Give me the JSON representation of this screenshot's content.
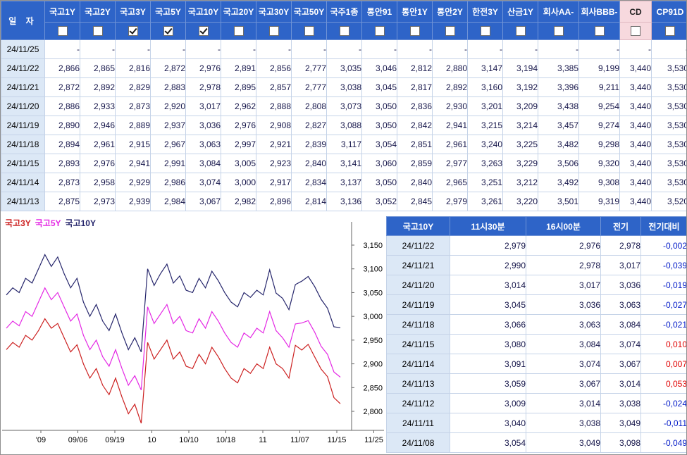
{
  "colors": {
    "header_bg": "#2e64c8",
    "header_text": "#ffffff",
    "date_cell_bg": "#dce8f6",
    "grid": "#c5d3e8",
    "value_text": "#15154a",
    "cd_highlight_bg": "#f7d9de",
    "negative": "#0018c8",
    "positive": "#e00000",
    "series_3y": "#cc2020",
    "series_5y": "#e428e4",
    "series_10y": "#26266c"
  },
  "top_table": {
    "date_header": "일 자",
    "columns": [
      {
        "label": "국고1Y",
        "checked": false,
        "highlight": false
      },
      {
        "label": "국고2Y",
        "checked": false,
        "highlight": false
      },
      {
        "label": "국고3Y",
        "checked": true,
        "highlight": false
      },
      {
        "label": "국고5Y",
        "checked": true,
        "highlight": false
      },
      {
        "label": "국고10Y",
        "checked": true,
        "highlight": false
      },
      {
        "label": "국고20Y",
        "checked": false,
        "highlight": false
      },
      {
        "label": "국고30Y",
        "checked": false,
        "highlight": false
      },
      {
        "label": "국고50Y",
        "checked": false,
        "highlight": false
      },
      {
        "label": "국주1종",
        "checked": false,
        "highlight": false
      },
      {
        "label": "통안91",
        "checked": false,
        "highlight": false
      },
      {
        "label": "통안1Y",
        "checked": false,
        "highlight": false
      },
      {
        "label": "통안2Y",
        "checked": false,
        "highlight": false
      },
      {
        "label": "한전3Y",
        "checked": false,
        "highlight": false
      },
      {
        "label": "산금1Y",
        "checked": false,
        "highlight": false
      },
      {
        "label": "회사AA-",
        "checked": false,
        "highlight": false
      },
      {
        "label": "회사BBB-",
        "checked": false,
        "highlight": false
      },
      {
        "label": "CD",
        "checked": false,
        "highlight": true
      },
      {
        "label": "CP91D",
        "checked": false,
        "highlight": false
      }
    ],
    "rows": [
      {
        "date": "24/11/25",
        "values": [
          "-",
          "-",
          "-",
          "-",
          "-",
          "-",
          "-",
          "-",
          "-",
          "-",
          "-",
          "-",
          "-",
          "-",
          "-",
          "-",
          "-",
          "-"
        ]
      },
      {
        "date": "24/11/22",
        "values": [
          "2,866",
          "2,865",
          "2,816",
          "2,872",
          "2,976",
          "2,891",
          "2,856",
          "2,777",
          "3,035",
          "3,046",
          "2,812",
          "2,880",
          "3,147",
          "3,194",
          "3,385",
          "9,199",
          "3,440",
          "3,530"
        ]
      },
      {
        "date": "24/11/21",
        "values": [
          "2,872",
          "2,892",
          "2,829",
          "2,883",
          "2,978",
          "2,895",
          "2,857",
          "2,777",
          "3,038",
          "3,045",
          "2,817",
          "2,892",
          "3,160",
          "3,192",
          "3,396",
          "9,211",
          "3,440",
          "3,530"
        ]
      },
      {
        "date": "24/11/20",
        "values": [
          "2,886",
          "2,933",
          "2,873",
          "2,920",
          "3,017",
          "2,962",
          "2,888",
          "2,808",
          "3,073",
          "3,050",
          "2,836",
          "2,930",
          "3,201",
          "3,209",
          "3,438",
          "9,254",
          "3,440",
          "3,530"
        ]
      },
      {
        "date": "24/11/19",
        "values": [
          "2,890",
          "2,946",
          "2,889",
          "2,937",
          "3,036",
          "2,976",
          "2,908",
          "2,827",
          "3,088",
          "3,050",
          "2,842",
          "2,941",
          "3,215",
          "3,214",
          "3,457",
          "9,274",
          "3,440",
          "3,530"
        ]
      },
      {
        "date": "24/11/18",
        "values": [
          "2,894",
          "2,961",
          "2,915",
          "2,967",
          "3,063",
          "2,997",
          "2,921",
          "2,839",
          "3,117",
          "3,054",
          "2,851",
          "2,961",
          "3,240",
          "3,225",
          "3,482",
          "9,298",
          "3,440",
          "3,530"
        ]
      },
      {
        "date": "24/11/15",
        "values": [
          "2,893",
          "2,976",
          "2,941",
          "2,991",
          "3,084",
          "3,005",
          "2,923",
          "2,840",
          "3,141",
          "3,060",
          "2,859",
          "2,977",
          "3,263",
          "3,229",
          "3,506",
          "9,320",
          "3,440",
          "3,530"
        ]
      },
      {
        "date": "24/11/14",
        "values": [
          "2,873",
          "2,958",
          "2,929",
          "2,986",
          "3,074",
          "3,000",
          "2,917",
          "2,834",
          "3,137",
          "3,050",
          "2,840",
          "2,965",
          "3,251",
          "3,212",
          "3,492",
          "9,308",
          "3,440",
          "3,530"
        ]
      },
      {
        "date": "24/11/13",
        "values": [
          "2,875",
          "2,973",
          "2,939",
          "2,984",
          "3,067",
          "2,982",
          "2,896",
          "2,814",
          "3,136",
          "3,052",
          "2,845",
          "2,979",
          "3,261",
          "3,220",
          "3,501",
          "9,319",
          "3,440",
          "3,520"
        ]
      }
    ]
  },
  "chart_data": {
    "type": "line",
    "title": "",
    "xlabel": "",
    "ylabel": "",
    "grid": false,
    "legend_position": "top-left",
    "y_axis_side": "right",
    "ylim": [
      2.76,
      3.193
    ],
    "y_tick_values": [
      3.15,
      3.1,
      3.05,
      3.0,
      2.95,
      2.9,
      2.85,
      2.8
    ],
    "y_tick_labels": [
      "3,150",
      "3,100",
      "3,050",
      "3,000",
      "2,950",
      "2,900",
      "2,850",
      "2,800"
    ],
    "x_tick_labels": [
      "'09",
      "09/06",
      "09/19",
      "10",
      "10/10",
      "10/18",
      "11",
      "11/07",
      "11/15",
      "11/25"
    ],
    "series": [
      {
        "name": "국고3Y",
        "color": "#cc2020",
        "values": [
          2.93,
          2.945,
          2.935,
          2.96,
          2.95,
          2.97,
          2.995,
          2.975,
          2.985,
          2.955,
          2.925,
          2.94,
          2.9,
          2.87,
          2.89,
          2.855,
          2.835,
          2.87,
          2.83,
          2.795,
          2.815,
          2.775,
          2.945,
          2.91,
          2.93,
          2.95,
          2.91,
          2.925,
          2.895,
          2.89,
          2.92,
          2.9,
          2.935,
          2.915,
          2.89,
          2.87,
          2.86,
          2.89,
          2.88,
          2.9,
          2.89,
          2.935,
          2.9,
          2.89,
          2.87,
          2.939,
          2.929,
          2.941,
          2.915,
          2.889,
          2.873,
          2.829,
          2.816
        ]
      },
      {
        "name": "국고5Y",
        "color": "#e428e4",
        "values": [
          2.975,
          2.99,
          2.98,
          3.01,
          3.0,
          3.03,
          3.06,
          3.035,
          3.05,
          3.02,
          2.99,
          3.005,
          2.96,
          2.93,
          2.95,
          2.915,
          2.895,
          2.93,
          2.89,
          2.855,
          2.875,
          2.845,
          3.02,
          2.985,
          3.005,
          3.025,
          2.985,
          3.0,
          2.97,
          2.965,
          2.995,
          2.975,
          3.01,
          2.99,
          2.965,
          2.945,
          2.935,
          2.965,
          2.955,
          2.975,
          2.965,
          3.01,
          2.97,
          2.955,
          2.935,
          2.984,
          2.986,
          2.991,
          2.967,
          2.937,
          2.92,
          2.883,
          2.872
        ]
      },
      {
        "name": "국고10Y",
        "color": "#26266c",
        "values": [
          3.045,
          3.06,
          3.05,
          3.08,
          3.07,
          3.1,
          3.13,
          3.105,
          3.125,
          3.09,
          3.06,
          3.08,
          3.03,
          3.0,
          3.025,
          2.99,
          2.97,
          3.005,
          2.965,
          2.93,
          2.955,
          2.925,
          3.1,
          3.065,
          3.09,
          3.11,
          3.07,
          3.085,
          3.055,
          3.05,
          3.08,
          3.06,
          3.095,
          3.075,
          3.05,
          3.03,
          3.02,
          3.05,
          3.04,
          3.055,
          3.045,
          3.098,
          3.049,
          3.038,
          3.014,
          3.067,
          3.074,
          3.084,
          3.063,
          3.036,
          3.017,
          2.978,
          2.976
        ]
      }
    ]
  },
  "right_table": {
    "headers": [
      "국고10Y",
      "11시30분",
      "16시00분",
      "전기",
      "전기대비"
    ],
    "rows": [
      {
        "date": "24/11/22",
        "t1130": "2,979",
        "t1600": "2,976",
        "prev": "2,978",
        "diff": "-0,002"
      },
      {
        "date": "24/11/21",
        "t1130": "2,990",
        "t1600": "2,978",
        "prev": "3,017",
        "diff": "-0,039"
      },
      {
        "date": "24/11/20",
        "t1130": "3,014",
        "t1600": "3,017",
        "prev": "3,036",
        "diff": "-0,019"
      },
      {
        "date": "24/11/19",
        "t1130": "3,045",
        "t1600": "3,036",
        "prev": "3,063",
        "diff": "-0,027"
      },
      {
        "date": "24/11/18",
        "t1130": "3,066",
        "t1600": "3,063",
        "prev": "3,084",
        "diff": "-0,021"
      },
      {
        "date": "24/11/15",
        "t1130": "3,080",
        "t1600": "3,084",
        "prev": "3,074",
        "diff": "0,010"
      },
      {
        "date": "24/11/14",
        "t1130": "3,091",
        "t1600": "3,074",
        "prev": "3,067",
        "diff": "0,007"
      },
      {
        "date": "24/11/13",
        "t1130": "3,059",
        "t1600": "3,067",
        "prev": "3,014",
        "diff": "0,053"
      },
      {
        "date": "24/11/12",
        "t1130": "3,009",
        "t1600": "3,014",
        "prev": "3,038",
        "diff": "-0,024"
      },
      {
        "date": "24/11/11",
        "t1130": "3,040",
        "t1600": "3,038",
        "prev": "3,049",
        "diff": "-0,011"
      },
      {
        "date": "24/11/08",
        "t1130": "3,054",
        "t1600": "3,049",
        "prev": "3,098",
        "diff": "-0,049"
      }
    ]
  }
}
